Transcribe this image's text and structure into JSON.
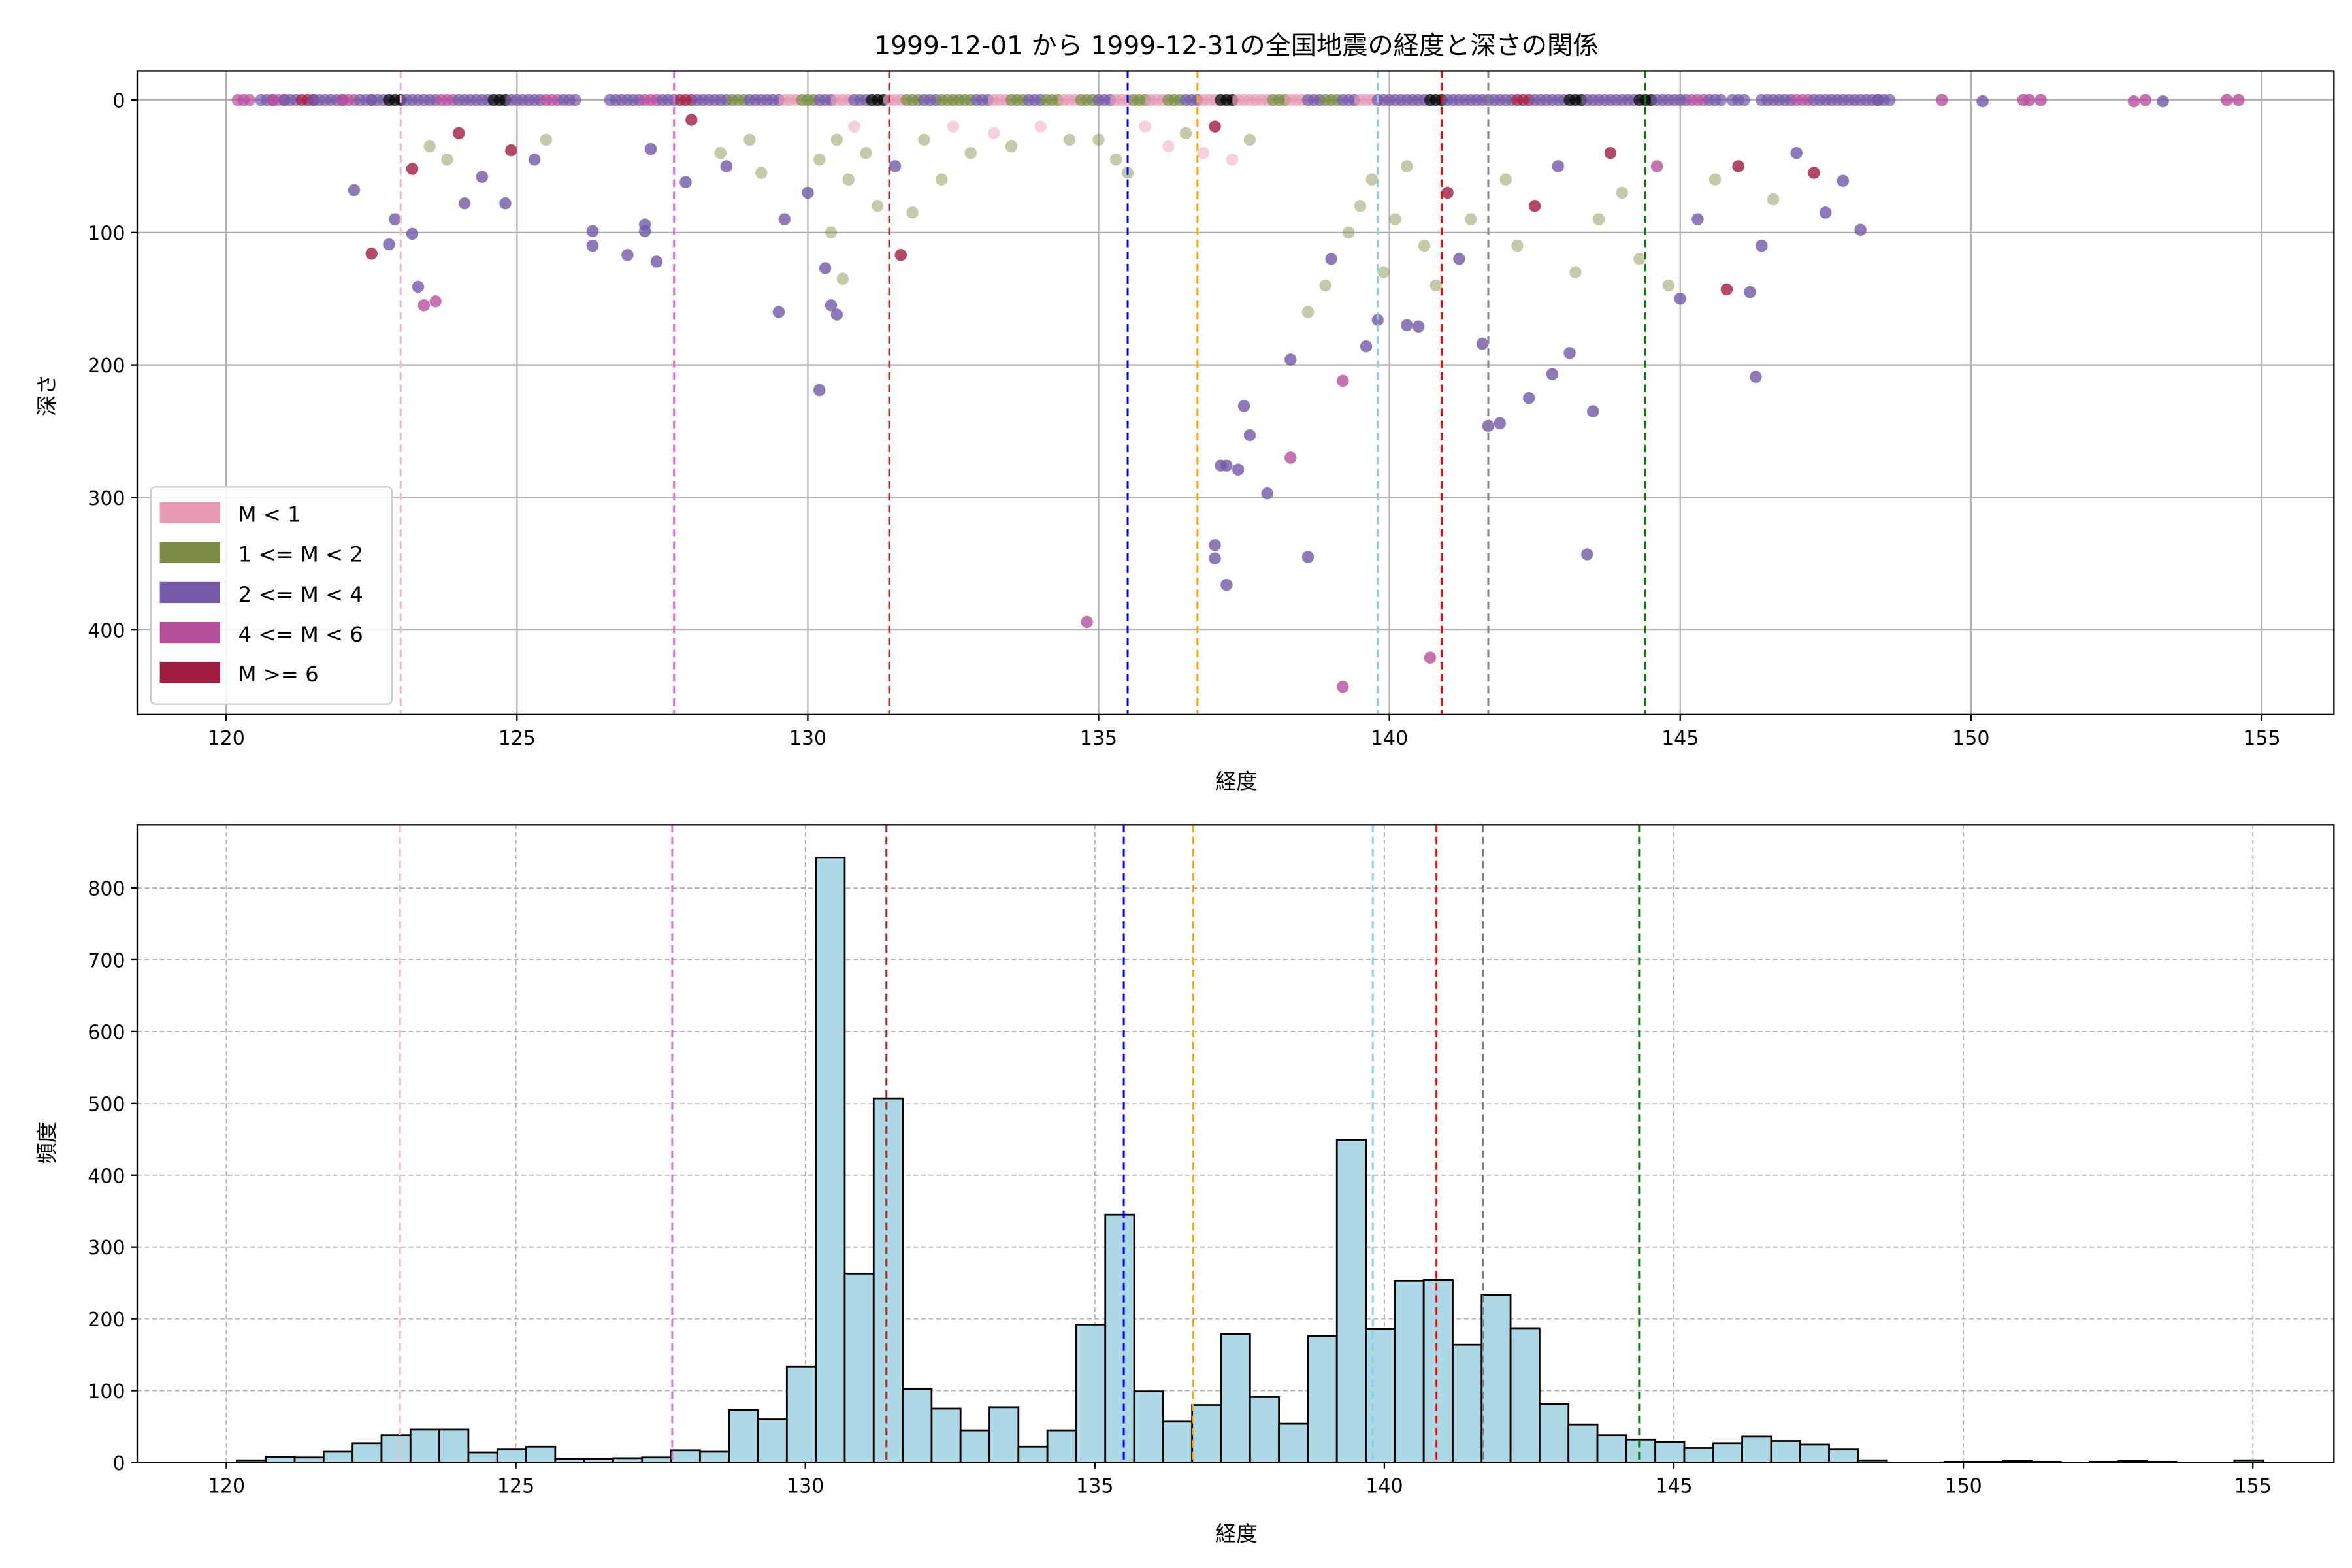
{
  "title": "1999-12-01 から 1999-12-31の全国地震の経度と深さの関係",
  "chart_data": [
    {
      "type": "scatter",
      "xlabel": "経度",
      "ylabel": "深さ",
      "xlim": [
        118.47,
        156.24
      ],
      "ylim": [
        464,
        -22
      ],
      "y_inverted": true,
      "xticks": [
        120,
        125,
        130,
        135,
        140,
        145,
        150,
        155
      ],
      "yticks": [
        0,
        100,
        200,
        300,
        400
      ],
      "grid": true,
      "legend_position": "lower-left",
      "legend": [
        {
          "label": "M < 1",
          "color": "#e89ab5"
        },
        {
          "label": "1 <= M < 2",
          "color": "#7b8b43"
        },
        {
          "label": "2 <= M < 4",
          "color": "#7359a8"
        },
        {
          "label": "4 <= M < 6",
          "color": "#b84f9c"
        },
        {
          "label": "M >= 6",
          "color": "#a01c40"
        }
      ],
      "vlines": [
        {
          "x": 123.0,
          "color": "#ffb6c1"
        },
        {
          "x": 127.7,
          "color": "#da70d6"
        },
        {
          "x": 131.4,
          "color": "#a52a2a"
        },
        {
          "x": 135.5,
          "color": "#0000ff"
        },
        {
          "x": 136.7,
          "color": "#ffa500"
        },
        {
          "x": 139.8,
          "color": "#87ceeb"
        },
        {
          "x": 140.9,
          "color": "#ff0000"
        },
        {
          "x": 141.7,
          "color": "#808080"
        },
        {
          "x": 144.4,
          "color": "#008000"
        }
      ],
      "surface_points": [
        120.2,
        120.6,
        120.8,
        121.0,
        121.3,
        121.5,
        121.8,
        122.0,
        122.3,
        122.5,
        122.8,
        123.1,
        123.4,
        123.7,
        124.0,
        124.3,
        124.6,
        124.9,
        125.2,
        125.5,
        125.8,
        126.6,
        126.9,
        127.2,
        127.5,
        127.8,
        128.1,
        128.4,
        128.7,
        129.0,
        129.3,
        129.6,
        129.9,
        130.2,
        130.5,
        130.8,
        131.1,
        131.4,
        131.7,
        132.0,
        132.3,
        132.6,
        132.9,
        133.2,
        133.5,
        133.8,
        134.1,
        134.4,
        134.7,
        135.0,
        135.3,
        135.6,
        135.9,
        136.2,
        136.5,
        136.8,
        137.1,
        137.4,
        137.7,
        138.0,
        138.3,
        138.6,
        138.9,
        139.2,
        139.5,
        139.8,
        140.1,
        140.4,
        140.7,
        141.0,
        141.3,
        141.6,
        141.9,
        142.2,
        142.5,
        142.8,
        143.1,
        143.4,
        143.7,
        144.0,
        144.3,
        144.6,
        144.9,
        145.2,
        145.5,
        145.9,
        146.4,
        146.7,
        147.0,
        147.3,
        147.6,
        147.9,
        148.2,
        148.4
      ],
      "surface_classes": [
        3,
        2,
        3,
        2,
        4,
        2,
        2,
        3,
        2,
        2,
        5,
        2,
        2,
        3,
        2,
        2,
        5,
        2,
        2,
        3,
        2,
        2,
        2,
        3,
        2,
        4,
        2,
        2,
        1,
        2,
        2,
        0,
        1,
        2,
        0,
        2,
        5,
        0,
        1,
        2,
        1,
        1,
        2,
        0,
        1,
        2,
        1,
        0,
        1,
        2,
        0,
        1,
        0,
        1,
        2,
        0,
        5,
        0,
        0,
        1,
        0,
        2,
        1,
        2,
        0,
        2,
        2,
        2,
        5,
        2,
        2,
        2,
        2,
        4,
        2,
        2,
        5,
        2,
        2,
        2,
        5,
        2,
        2,
        3,
        2,
        2,
        2,
        2,
        3,
        2,
        2,
        2,
        2,
        2
      ],
      "points": [
        [
          149.5,
          0,
          3
        ],
        [
          150.2,
          1,
          2
        ],
        [
          150.9,
          0,
          3
        ],
        [
          151.0,
          0,
          3
        ],
        [
          151.2,
          0,
          3
        ],
        [
          152.8,
          1,
          3
        ],
        [
          153.0,
          0,
          3
        ],
        [
          153.3,
          1,
          2
        ],
        [
          154.4,
          0,
          3
        ],
        [
          154.6,
          0,
          3
        ],
        [
          122.5,
          116,
          4
        ],
        [
          123.3,
          141,
          2
        ],
        [
          123.4,
          155,
          3
        ],
        [
          123.6,
          152,
          3
        ],
        [
          123.2,
          101,
          2
        ],
        [
          122.9,
          90,
          2
        ],
        [
          122.2,
          68,
          2
        ],
        [
          122.8,
          109,
          2
        ],
        [
          124.4,
          58,
          2
        ],
        [
          124.8,
          78,
          2
        ],
        [
          124.1,
          78,
          2
        ],
        [
          123.2,
          52,
          4
        ],
        [
          123.5,
          35,
          1
        ],
        [
          123.8,
          45,
          1
        ],
        [
          124.0,
          25,
          4
        ],
        [
          124.9,
          38,
          4
        ],
        [
          125.3,
          45,
          2
        ],
        [
          125.5,
          30,
          1
        ],
        [
          126.3,
          99,
          2
        ],
        [
          126.3,
          110,
          2
        ],
        [
          126.9,
          117,
          2
        ],
        [
          127.2,
          94,
          2
        ],
        [
          127.2,
          99,
          2
        ],
        [
          127.4,
          122,
          2
        ],
        [
          127.3,
          37,
          2
        ],
        [
          127.9,
          62,
          2
        ],
        [
          128.0,
          15,
          4
        ],
        [
          128.5,
          40,
          1
        ],
        [
          128.6,
          50,
          2
        ],
        [
          129.0,
          30,
          1
        ],
        [
          129.2,
          55,
          1
        ],
        [
          129.5,
          160,
          2
        ],
        [
          129.6,
          90,
          2
        ],
        [
          130.2,
          219,
          2
        ],
        [
          130.3,
          127,
          2
        ],
        [
          130.4,
          155,
          2
        ],
        [
          130.5,
          162,
          2
        ],
        [
          130.6,
          135,
          1
        ],
        [
          130.4,
          100,
          1
        ],
        [
          130.0,
          70,
          2
        ],
        [
          130.2,
          45,
          1
        ],
        [
          130.5,
          30,
          1
        ],
        [
          130.7,
          60,
          1
        ],
        [
          130.8,
          20,
          0
        ],
        [
          131.0,
          40,
          1
        ],
        [
          131.2,
          80,
          1
        ],
        [
          131.6,
          117,
          4
        ],
        [
          131.8,
          85,
          1
        ],
        [
          131.5,
          50,
          2
        ],
        [
          132.0,
          30,
          1
        ],
        [
          132.3,
          60,
          1
        ],
        [
          132.5,
          20,
          0
        ],
        [
          132.8,
          40,
          1
        ],
        [
          133.2,
          25,
          0
        ],
        [
          133.5,
          35,
          1
        ],
        [
          134.0,
          20,
          0
        ],
        [
          134.5,
          30,
          1
        ],
        [
          134.8,
          394,
          3
        ],
        [
          135.0,
          30,
          1
        ],
        [
          135.3,
          45,
          1
        ],
        [
          135.5,
          55,
          1
        ],
        [
          135.8,
          20,
          0
        ],
        [
          136.2,
          35,
          0
        ],
        [
          136.5,
          25,
          1
        ],
        [
          136.8,
          40,
          0
        ],
        [
          137.0,
          20,
          4
        ],
        [
          137.3,
          45,
          0
        ],
        [
          137.6,
          30,
          1
        ],
        [
          137.1,
          276,
          2
        ],
        [
          137.2,
          276,
          2
        ],
        [
          137.4,
          279,
          2
        ],
        [
          137.5,
          231,
          2
        ],
        [
          137.6,
          253,
          2
        ],
        [
          137.9,
          297,
          2
        ],
        [
          137.0,
          336,
          2
        ],
        [
          137.0,
          346,
          2
        ],
        [
          137.2,
          366,
          2
        ],
        [
          138.3,
          270,
          3
        ],
        [
          138.6,
          345,
          2
        ],
        [
          139.2,
          212,
          3
        ],
        [
          139.2,
          443,
          3
        ],
        [
          140.7,
          421,
          3
        ],
        [
          138.3,
          196,
          2
        ],
        [
          138.6,
          160,
          1
        ],
        [
          138.9,
          140,
          1
        ],
        [
          139.0,
          120,
          2
        ],
        [
          139.3,
          100,
          1
        ],
        [
          139.6,
          186,
          2
        ],
        [
          139.8,
          166,
          2
        ],
        [
          139.5,
          80,
          1
        ],
        [
          139.7,
          60,
          1
        ],
        [
          139.9,
          130,
          1
        ],
        [
          140.1,
          90,
          1
        ],
        [
          140.3,
          170,
          2
        ],
        [
          140.5,
          171,
          2
        ],
        [
          140.3,
          50,
          1
        ],
        [
          140.6,
          110,
          1
        ],
        [
          140.8,
          140,
          1
        ],
        [
          141.0,
          70,
          4
        ],
        [
          141.2,
          120,
          2
        ],
        [
          141.4,
          90,
          1
        ],
        [
          141.6,
          184,
          2
        ],
        [
          141.7,
          246,
          2
        ],
        [
          141.9,
          244,
          2
        ],
        [
          142.0,
          60,
          1
        ],
        [
          142.2,
          110,
          1
        ],
        [
          142.4,
          225,
          2
        ],
        [
          142.5,
          80,
          4
        ],
        [
          142.8,
          207,
          2
        ],
        [
          142.9,
          50,
          2
        ],
        [
          143.1,
          191,
          2
        ],
        [
          143.2,
          130,
          1
        ],
        [
          143.4,
          343,
          2
        ],
        [
          143.5,
          235,
          2
        ],
        [
          143.6,
          90,
          1
        ],
        [
          143.8,
          40,
          4
        ],
        [
          144.0,
          70,
          1
        ],
        [
          144.3,
          120,
          1
        ],
        [
          144.6,
          50,
          3
        ],
        [
          144.8,
          140,
          1
        ],
        [
          145.0,
          150,
          2
        ],
        [
          145.3,
          90,
          2
        ],
        [
          145.6,
          60,
          1
        ],
        [
          145.8,
          143,
          4
        ],
        [
          146.0,
          50,
          4
        ],
        [
          146.2,
          145,
          2
        ],
        [
          146.3,
          209,
          2
        ],
        [
          146.4,
          110,
          2
        ],
        [
          146.6,
          75,
          1
        ],
        [
          147.0,
          40,
          2
        ],
        [
          147.3,
          55,
          4
        ],
        [
          147.5,
          85,
          2
        ],
        [
          148.1,
          98,
          2
        ],
        [
          147.8,
          61,
          2
        ]
      ]
    },
    {
      "type": "bar",
      "subtype": "histogram",
      "xlabel": "経度",
      "ylabel": "頻度",
      "xlim": [
        118.46,
        156.4
      ],
      "ylim": [
        0,
        888
      ],
      "xticks": [
        120,
        125,
        130,
        135,
        140,
        145,
        150,
        155
      ],
      "yticks": [
        0,
        100,
        200,
        300,
        400,
        500,
        600,
        700,
        800
      ],
      "grid": true,
      "bar_color": "#add8e6",
      "bin_start": 120.18,
      "bin_width": 0.5,
      "values": [
        3,
        8,
        7,
        15,
        27,
        38,
        46,
        46,
        14,
        18,
        22,
        5,
        5,
        6,
        7,
        17,
        15,
        73,
        60,
        133,
        842,
        263,
        507,
        102,
        75,
        44,
        77,
        22,
        44,
        192,
        345,
        99,
        57,
        80,
        179,
        91,
        54,
        176,
        449,
        186,
        253,
        254,
        164,
        233,
        187,
        81,
        53,
        38,
        32,
        29,
        20,
        27,
        36,
        30,
        25,
        18,
        3,
        0,
        0,
        1,
        1,
        2,
        1,
        0,
        1,
        2,
        1,
        0,
        0,
        3
      ],
      "vlines": [
        {
          "x": 123.0,
          "color": "#ffb6c1"
        },
        {
          "x": 127.7,
          "color": "#da70d6"
        },
        {
          "x": 131.4,
          "color": "#a52a2a"
        },
        {
          "x": 135.5,
          "color": "#0000ff"
        },
        {
          "x": 136.7,
          "color": "#ffa500"
        },
        {
          "x": 139.8,
          "color": "#87ceeb"
        },
        {
          "x": 140.9,
          "color": "#ff0000"
        },
        {
          "x": 141.7,
          "color": "#808080"
        },
        {
          "x": 144.4,
          "color": "#008000"
        }
      ]
    }
  ]
}
